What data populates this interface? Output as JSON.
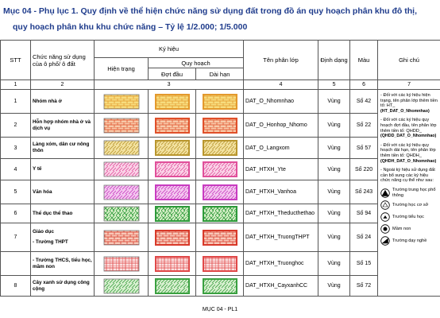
{
  "title": [
    "Mục 04 - Phụ lục 1. Quy định về thể hiện chức năng sử dụng đất trong đồ án quy hoạch phân khu đô thị,",
    "quy hoạch phân khu khu chức năng  – Tỷ lệ 1/2.000; 1/5.000"
  ],
  "table": {
    "headers": {
      "stt": "STT",
      "function": "Chức năng sử dụng của ô phố/ ô đất",
      "symbol": "Ký hiệu",
      "current": "Hiện trạng",
      "planning": "Quy hoạch",
      "phase1": "Đợt đầu",
      "longterm": "Dài hạn",
      "layer": "Tên phân lớp",
      "format": "Định dạng",
      "color": "Màu",
      "note": "Ghi chú"
    },
    "column_numbers": [
      1,
      2,
      3,
      4,
      5,
      6,
      7
    ],
    "rows": [
      {
        "stt": 1,
        "name": "Nhóm nhà ở",
        "layer": "DAT_O_Nhomnhao",
        "format": "Vùng",
        "color": "Số 42"
      },
      {
        "stt": 2,
        "name": "Hỗn hợp nhóm nhà ở và dịch vụ",
        "layer": "DAT_O_Honhop_Nhomo",
        "format": "Vùng",
        "color": "Số 22"
      },
      {
        "stt": 3,
        "name": "Làng xóm, dân cư nông thôn",
        "layer": "DAT_O_Langxom",
        "format": "Vùng",
        "color": "Số 57"
      },
      {
        "stt": 4,
        "name": "Y tế",
        "layer": "DAT_HTXH_Yte",
        "format": "Vùng",
        "color": "Số 220"
      },
      {
        "stt": 5,
        "name": "Văn hóa",
        "layer": "DAT_HTXH_Vanhoa",
        "format": "Vùng",
        "color": "Số 243"
      },
      {
        "stt": 6,
        "name": "Thể dục thể thao",
        "layer": "DAT_HTXH_Theducthethao",
        "format": "Vùng",
        "color": "Số 94"
      },
      {
        "stt": 7,
        "group": "Giáo dục",
        "name": "- Trường THPT",
        "layer": "DAT_HTXH_TruongTHPT",
        "format": "Vùng",
        "color": "Số 24"
      },
      {
        "name": "- Trường THCS, tiểu học, mầm non",
        "layer": "DAT_HTXH_Truonghoc",
        "format": "Vùng",
        "color": "Số 15"
      },
      {
        "stt": 8,
        "name": "Cây xanh sử dụng công cộng",
        "layer": "DAT_HTXH_CayxanhCC",
        "format": "Vùng",
        "color": "Số 72"
      }
    ],
    "notes": [
      {
        "text": "- Đối với các ký hiệu hiện trạng, tên phân lớp thêm tiền tố: HT_",
        "example": "(HT_DAT_O_Nhomnhao)"
      },
      {
        "text": "- Đối với các ký hiệu quy hoạch đợt đầu, tên phân lớp thêm tiền tố: QHDD_",
        "example": "(QHDD_DAT_O_Nhomnhao)"
      },
      {
        "text": "- Đối với các ký hiệu quy hoạch dài hạn, tên phân lớp thêm tiền tố: QHDH_",
        "example": "(QHDH_DAT_O_Nhomnhao)"
      },
      {
        "text": "- Ngoài ký hiệu sử dụng đất cần bổ sung các ký hiệu chức năng cụ thể như sau:"
      }
    ],
    "legend": [
      "Trường trung học phổ thông",
      "Trường học cơ sở",
      "Trường tiểu học",
      "Mầm non",
      "Trường dạy nghề"
    ]
  },
  "footer": "MỤC 04 - PL1"
}
